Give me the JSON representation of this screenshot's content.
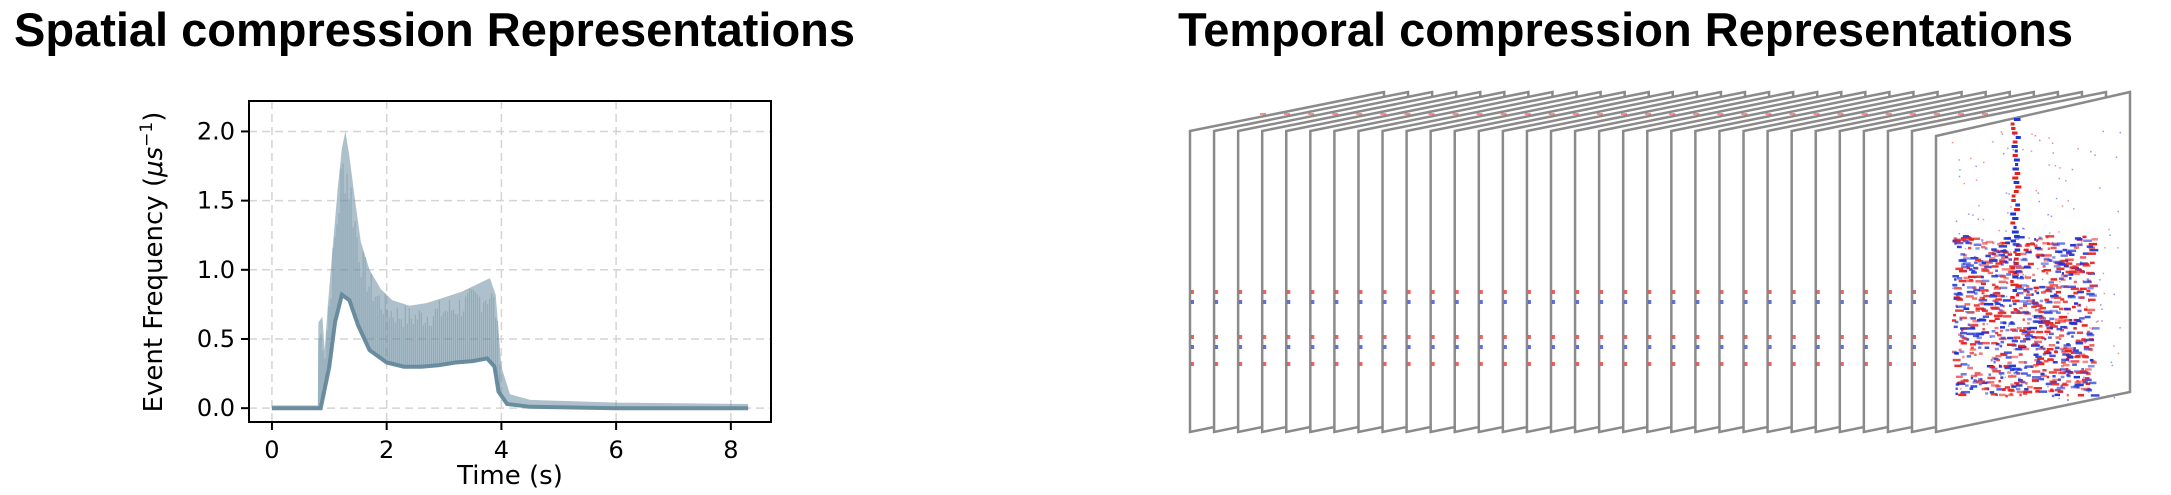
{
  "panels": {
    "left_title": "Spatial compression Representations",
    "right_title": "Temporal compression Representations"
  },
  "chart_data": {
    "type": "area",
    "xlabel": "Time (s)",
    "ylabel_main": "Event Frequency (",
    "ylabel_unit": "μs",
    "ylabel_exp": "−1",
    "ylabel_close": ")",
    "xlim": [
      -0.4,
      8.7
    ],
    "ylim": [
      -0.1,
      2.22
    ],
    "x_ticks": [
      0,
      2,
      4,
      6,
      8
    ],
    "x_tick_labels": [
      "0",
      "2",
      "4",
      "6",
      "8"
    ],
    "y_ticks": [
      0.0,
      0.5,
      1.0,
      1.5,
      2.0
    ],
    "y_tick_labels": [
      "0.0",
      "0.5",
      "1.0",
      "1.5",
      "2.0"
    ],
    "grid": true,
    "color": "#6a8da0",
    "upper": [
      [
        0,
        0.02
      ],
      [
        0.8,
        0.02
      ],
      [
        0.81,
        0.62
      ],
      [
        0.88,
        0.66
      ],
      [
        0.92,
        0.42
      ],
      [
        0.97,
        0.72
      ],
      [
        1.05,
        1.12
      ],
      [
        1.15,
        1.6
      ],
      [
        1.22,
        1.88
      ],
      [
        1.28,
        2.0
      ],
      [
        1.35,
        1.82
      ],
      [
        1.45,
        1.5
      ],
      [
        1.55,
        1.2
      ],
      [
        1.7,
        1.0
      ],
      [
        1.9,
        0.86
      ],
      [
        2.1,
        0.78
      ],
      [
        2.4,
        0.74
      ],
      [
        2.7,
        0.76
      ],
      [
        3.0,
        0.8
      ],
      [
        3.3,
        0.84
      ],
      [
        3.6,
        0.9
      ],
      [
        3.8,
        0.94
      ],
      [
        3.9,
        0.82
      ],
      [
        4.0,
        0.3
      ],
      [
        4.15,
        0.1
      ],
      [
        4.5,
        0.06
      ],
      [
        6.0,
        0.04
      ],
      [
        8.3,
        0.03
      ]
    ],
    "lower": [
      [
        0,
        -0.01
      ],
      [
        0.8,
        -0.01
      ],
      [
        0.85,
        0.0
      ],
      [
        1.0,
        0.3
      ],
      [
        1.1,
        0.62
      ],
      [
        1.22,
        0.82
      ],
      [
        1.35,
        0.78
      ],
      [
        1.5,
        0.6
      ],
      [
        1.7,
        0.42
      ],
      [
        2.0,
        0.33
      ],
      [
        2.3,
        0.3
      ],
      [
        2.6,
        0.3
      ],
      [
        2.9,
        0.31
      ],
      [
        3.2,
        0.33
      ],
      [
        3.5,
        0.34
      ],
      [
        3.75,
        0.36
      ],
      [
        3.88,
        0.3
      ],
      [
        3.95,
        0.12
      ],
      [
        4.1,
        0.03
      ],
      [
        4.5,
        0.01
      ],
      [
        6.0,
        0.0
      ],
      [
        8.3,
        0.0
      ]
    ]
  },
  "frames": {
    "count": 31,
    "front_image_colors": [
      "#e8201c",
      "#1f35d6"
    ]
  }
}
